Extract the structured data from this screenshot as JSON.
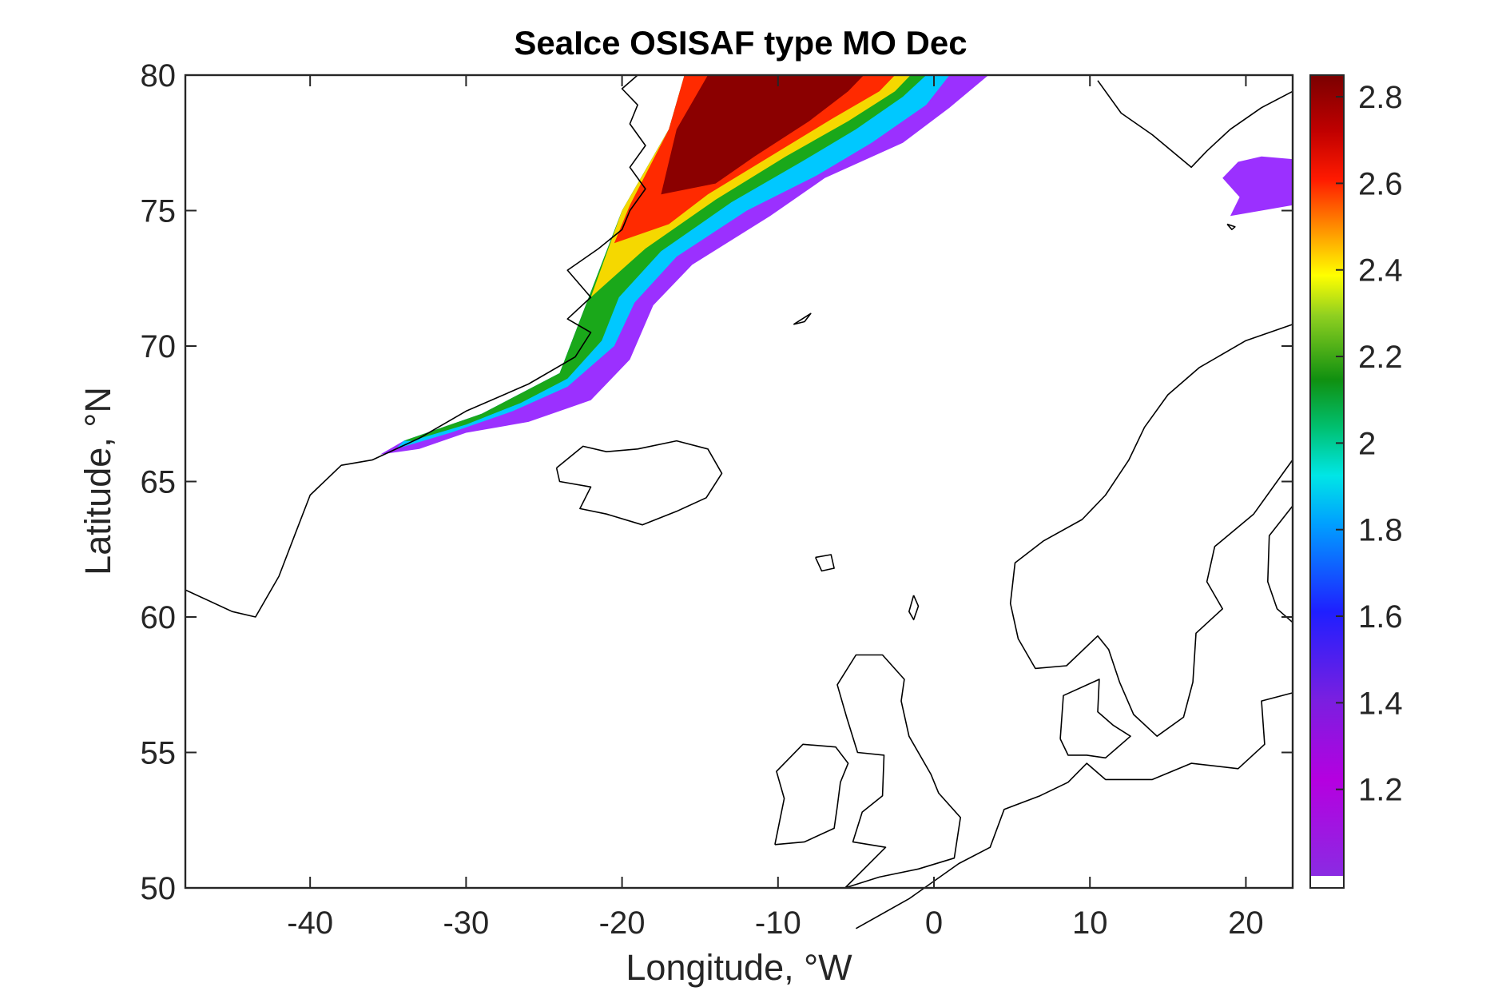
{
  "chart_data": {
    "type": "heatmap",
    "title": "SeaIce OSISAF type MO Dec",
    "xlabel": "Longitude, °W",
    "ylabel": "Latitude, °N",
    "xlim": [
      -48,
      23
    ],
    "ylim": [
      50,
      80
    ],
    "x_ticks": [
      "-40",
      "-30",
      "-20",
      "-10",
      "0",
      "10",
      "20"
    ],
    "y_ticks": [
      "50",
      "55",
      "60",
      "65",
      "70",
      "75",
      "80"
    ],
    "colorbar": {
      "range": [
        1.0,
        2.85
      ],
      "ticks": [
        "1.2",
        "1.4",
        "1.6",
        "1.8",
        "2",
        "2.2",
        "2.4",
        "2.6",
        "2.8"
      ],
      "colormap": "jet-like (violet to dark red)"
    },
    "ice_bands": [
      {
        "value": 1.15,
        "color": "#9b30ff",
        "lon_lat": [
          [
            -35.5,
            66.0
          ],
          [
            -33,
            66.2
          ],
          [
            -30,
            66.8
          ],
          [
            -26,
            67.2
          ],
          [
            -22,
            68.0
          ],
          [
            -19.5,
            69.5
          ],
          [
            -18.0,
            71.5
          ],
          [
            -15.5,
            73.0
          ],
          [
            -10.5,
            74.8
          ],
          [
            -7,
            76.2
          ],
          [
            -2,
            77.5
          ],
          [
            1,
            78.8
          ],
          [
            3.5,
            80
          ],
          [
            -16,
            80
          ],
          [
            -17,
            78
          ],
          [
            -20,
            75
          ],
          [
            -22,
            72
          ],
          [
            -24,
            69
          ],
          [
            -29,
            67.5
          ],
          [
            -34,
            66.5
          ]
        ]
      },
      {
        "value": 1.7,
        "color": "#00c8ff",
        "lon_lat": [
          [
            -34.5,
            66.2
          ],
          [
            -31,
            66.8
          ],
          [
            -27,
            67.6
          ],
          [
            -23.5,
            68.5
          ],
          [
            -20.5,
            70.0
          ],
          [
            -19.2,
            71.6
          ],
          [
            -16.5,
            73.3
          ],
          [
            -12,
            75.0
          ],
          [
            -7.5,
            76.3
          ],
          [
            -4,
            77.5
          ],
          [
            -0.5,
            78.9
          ],
          [
            1,
            80
          ],
          [
            -16,
            80
          ],
          [
            -17,
            78
          ],
          [
            -20,
            75
          ],
          [
            -22,
            72
          ],
          [
            -24,
            69
          ],
          [
            -29,
            67.5
          ],
          [
            -34,
            66.5
          ]
        ]
      },
      {
        "value": 2.1,
        "color": "#1aa81a",
        "lon_lat": [
          [
            -33.5,
            66.5
          ],
          [
            -30,
            67.1
          ],
          [
            -26.5,
            67.9
          ],
          [
            -23.5,
            68.8
          ],
          [
            -21.3,
            70.2
          ],
          [
            -20.2,
            71.8
          ],
          [
            -17.5,
            73.5
          ],
          [
            -13,
            75.3
          ],
          [
            -8.5,
            76.8
          ],
          [
            -5,
            78.0
          ],
          [
            -2,
            79.2
          ],
          [
            -0.5,
            80
          ],
          [
            -16,
            80
          ],
          [
            -17,
            78
          ],
          [
            -20,
            75
          ],
          [
            -22,
            72
          ],
          [
            -24,
            69
          ],
          [
            -29,
            67.5
          ],
          [
            -34,
            66.5
          ]
        ]
      },
      {
        "value": 2.4,
        "color": "#f5d800",
        "lon_lat": [
          [
            -22,
            71.8
          ],
          [
            -18.5,
            73.6
          ],
          [
            -14,
            75.4
          ],
          [
            -9.5,
            77.0
          ],
          [
            -5.5,
            78.3
          ],
          [
            -2.5,
            79.4
          ],
          [
            -1.5,
            80
          ],
          [
            -16,
            80
          ],
          [
            -17,
            78
          ],
          [
            -20,
            75
          ]
        ]
      },
      {
        "value": 2.6,
        "color": "#ff2a00",
        "lon_lat": [
          [
            -20.5,
            73.8
          ],
          [
            -17,
            74.5
          ],
          [
            -14.5,
            75.6
          ],
          [
            -10.5,
            77.0
          ],
          [
            -6.5,
            78.4
          ],
          [
            -3.5,
            79.4
          ],
          [
            -2.5,
            80
          ],
          [
            -16,
            80
          ],
          [
            -17,
            78
          ],
          [
            -19.5,
            75.2
          ]
        ]
      },
      {
        "value": 2.8,
        "color": "#8b0000",
        "lon_lat": [
          [
            -17.5,
            75.6
          ],
          [
            -14,
            76.0
          ],
          [
            -11.5,
            77.0
          ],
          [
            -8,
            78.3
          ],
          [
            -5.5,
            79.4
          ],
          [
            -4.5,
            80
          ],
          [
            -14.5,
            80
          ],
          [
            -16.5,
            78
          ]
        ]
      },
      {
        "value": 1.15,
        "color": "#9b30ff",
        "lon_lat": [
          [
            19.5,
            76.8
          ],
          [
            21,
            77.0
          ],
          [
            23,
            76.9
          ],
          [
            23,
            75.2
          ],
          [
            21,
            75.0
          ],
          [
            19.0,
            74.8
          ],
          [
            19.6,
            75.5
          ],
          [
            18.5,
            76.2
          ]
        ]
      }
    ]
  }
}
